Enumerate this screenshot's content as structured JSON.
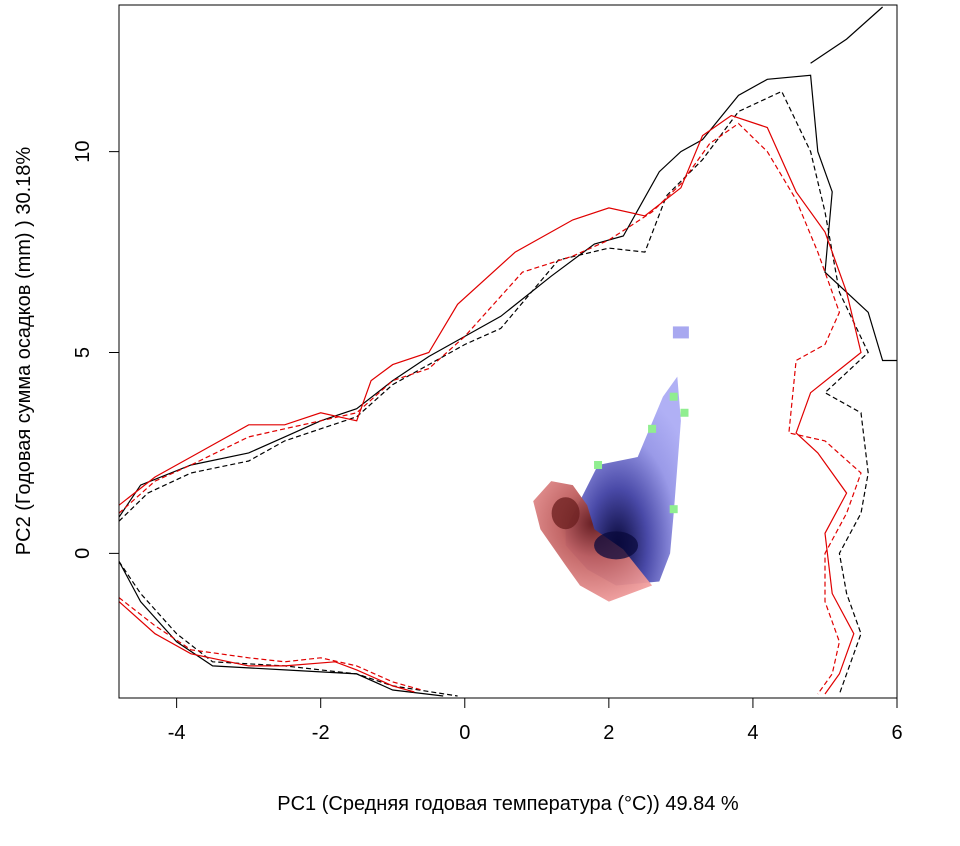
{
  "chart_data": {
    "type": "contour-density",
    "xlabel": "PC1 (Средняя годовая температура (°C)) 49.84 %",
    "ylabel": "PC2 (Годовая сумма осадков  (mm) ) 30.18%",
    "xlim": [
      -4.8,
      6.0
    ],
    "ylim": [
      -3.6,
      13.65
    ],
    "x_ticks": [
      -4,
      -2,
      0,
      2,
      4,
      6
    ],
    "x_tick_labels": [
      "-4",
      "-2",
      "0",
      "2",
      "4",
      "6"
    ],
    "y_ticks": [
      0,
      5,
      10
    ],
    "y_tick_labels": [
      "0",
      "5",
      "10"
    ],
    "grid": false,
    "legend": "none",
    "colors": {
      "species_a": "#e07070",
      "species_b": "#7070e0",
      "overlap": "#90ee90",
      "contour_a": "#e00000",
      "contour_b": "#000000"
    },
    "series": [
      {
        "style": "solid",
        "color": "#000000",
        "upper": [
          [
            -4.8,
            0.9
          ],
          [
            -4.5,
            1.7
          ],
          [
            -3.8,
            2.2
          ],
          [
            -3.0,
            2.5
          ],
          [
            -2.5,
            2.9
          ],
          [
            -2.0,
            3.3
          ],
          [
            -1.5,
            3.6
          ],
          [
            -1.0,
            4.3
          ],
          [
            -0.5,
            4.9
          ],
          [
            0,
            5.4
          ],
          [
            0.5,
            5.9
          ],
          [
            1.2,
            6.9
          ],
          [
            1.8,
            7.7
          ],
          [
            2.2,
            7.9
          ],
          [
            2.7,
            9.5
          ],
          [
            3.0,
            10.0
          ],
          [
            3.3,
            10.3
          ],
          [
            3.8,
            11.4
          ],
          [
            4.2,
            11.8
          ],
          [
            4.8,
            11.9
          ],
          [
            4.9,
            10.0
          ],
          [
            5.1,
            9.0
          ],
          [
            5.0,
            7.0
          ],
          [
            5.6,
            6.0
          ],
          [
            5.8,
            4.8
          ],
          [
            6.0,
            4.8
          ]
        ],
        "lower": [
          [
            -4.8,
            -0.2
          ],
          [
            -4.5,
            -1.2
          ],
          [
            -4.0,
            -2.2
          ],
          [
            -3.5,
            -2.8
          ],
          [
            -2.5,
            -2.9
          ],
          [
            -1.5,
            -3.0
          ],
          [
            -1.0,
            -3.4
          ],
          [
            -0.3,
            -3.55
          ]
        ],
        "corner": [
          [
            4.8,
            12.2
          ],
          [
            5.3,
            12.8
          ],
          [
            5.8,
            13.6
          ]
        ]
      },
      {
        "style": "dashed",
        "color": "#000000",
        "upper": [
          [
            -4.8,
            0.8
          ],
          [
            -4.4,
            1.5
          ],
          [
            -3.8,
            2.0
          ],
          [
            -3.0,
            2.3
          ],
          [
            -2.5,
            2.8
          ],
          [
            -2.0,
            3.1
          ],
          [
            -1.5,
            3.4
          ],
          [
            -1.0,
            4.2
          ],
          [
            -0.5,
            4.7
          ],
          [
            0,
            5.2
          ],
          [
            0.5,
            5.6
          ],
          [
            1.3,
            7.3
          ],
          [
            2.0,
            7.6
          ],
          [
            2.5,
            7.5
          ],
          [
            2.8,
            8.9
          ],
          [
            3.3,
            9.8
          ],
          [
            3.8,
            11.0
          ],
          [
            4.4,
            11.5
          ],
          [
            4.8,
            10.0
          ],
          [
            5.0,
            8.5
          ],
          [
            5.2,
            6.5
          ],
          [
            5.6,
            5.0
          ],
          [
            5.0,
            4.0
          ],
          [
            5.5,
            3.5
          ],
          [
            5.6,
            2.0
          ],
          [
            5.5,
            1.0
          ],
          [
            5.2,
            0
          ],
          [
            5.3,
            -1.0
          ],
          [
            5.5,
            -2.0
          ],
          [
            5.3,
            -3.0
          ],
          [
            5.2,
            -3.5
          ]
        ],
        "lower": [
          [
            -4.8,
            -0.2
          ],
          [
            -4.5,
            -1.0
          ],
          [
            -4.0,
            -2.0
          ],
          [
            -3.5,
            -2.7
          ],
          [
            -2.5,
            -2.8
          ],
          [
            -1.5,
            -3.0
          ],
          [
            -1.0,
            -3.3
          ],
          [
            -0.1,
            -3.55
          ]
        ]
      },
      {
        "style": "solid",
        "color": "#e00000",
        "upper": [
          [
            -4.8,
            1.2
          ],
          [
            -4.3,
            1.9
          ],
          [
            -3.8,
            2.4
          ],
          [
            -3.0,
            3.2
          ],
          [
            -2.5,
            3.2
          ],
          [
            -2.0,
            3.5
          ],
          [
            -1.5,
            3.3
          ],
          [
            -1.3,
            4.3
          ],
          [
            -1.0,
            4.7
          ],
          [
            -0.5,
            5.0
          ],
          [
            -0.1,
            6.2
          ],
          [
            0.7,
            7.5
          ],
          [
            1.5,
            8.3
          ],
          [
            2.0,
            8.6
          ],
          [
            2.5,
            8.4
          ],
          [
            3.0,
            9.1
          ],
          [
            3.3,
            10.4
          ],
          [
            3.7,
            10.9
          ],
          [
            4.2,
            10.6
          ],
          [
            4.6,
            9.0
          ],
          [
            5.0,
            8.0
          ],
          [
            5.3,
            6.5
          ],
          [
            5.5,
            5.0
          ],
          [
            4.8,
            4.0
          ],
          [
            4.6,
            3.0
          ],
          [
            4.9,
            2.5
          ],
          [
            5.3,
            1.5
          ],
          [
            5.0,
            0.5
          ],
          [
            5.1,
            -1.0
          ],
          [
            5.4,
            -2.0
          ],
          [
            5.2,
            -3.0
          ],
          [
            5.0,
            -3.5
          ]
        ],
        "lower": [
          [
            -4.8,
            -1.2
          ],
          [
            -4.3,
            -2.0
          ],
          [
            -3.8,
            -2.5
          ],
          [
            -3.0,
            -2.8
          ],
          [
            -2.5,
            -2.8
          ],
          [
            -1.8,
            -2.7
          ],
          [
            -1.5,
            -2.9
          ],
          [
            -1.0,
            -3.3
          ],
          [
            -0.7,
            -3.45
          ]
        ]
      },
      {
        "style": "dashed",
        "color": "#e00000",
        "upper": [
          [
            -4.8,
            1.0
          ],
          [
            -4.3,
            1.8
          ],
          [
            -3.8,
            2.2
          ],
          [
            -3.0,
            2.9
          ],
          [
            -2.5,
            3.1
          ],
          [
            -2.0,
            3.3
          ],
          [
            -1.5,
            3.5
          ],
          [
            -1.0,
            4.3
          ],
          [
            -0.5,
            4.6
          ],
          [
            0,
            5.4
          ],
          [
            0.8,
            7.0
          ],
          [
            1.5,
            7.4
          ],
          [
            2.0,
            7.8
          ],
          [
            2.6,
            8.5
          ],
          [
            3.0,
            9.2
          ],
          [
            3.4,
            10.2
          ],
          [
            3.8,
            10.7
          ],
          [
            4.2,
            10.0
          ],
          [
            4.6,
            8.8
          ],
          [
            4.9,
            7.5
          ],
          [
            5.2,
            6.0
          ],
          [
            5.0,
            5.2
          ],
          [
            4.6,
            4.8
          ],
          [
            4.5,
            3.0
          ],
          [
            5.0,
            2.8
          ],
          [
            5.5,
            2.0
          ],
          [
            5.3,
            1.0
          ],
          [
            5.0,
            0
          ],
          [
            5.0,
            -1.2
          ],
          [
            5.2,
            -2.2
          ],
          [
            5.1,
            -3.0
          ],
          [
            4.9,
            -3.5
          ]
        ],
        "lower": [
          [
            -4.8,
            -1.1
          ],
          [
            -4.3,
            -1.8
          ],
          [
            -3.8,
            -2.4
          ],
          [
            -3.0,
            -2.6
          ],
          [
            -2.5,
            -2.7
          ],
          [
            -2.0,
            -2.6
          ],
          [
            -1.5,
            -2.8
          ],
          [
            -1.0,
            -3.2
          ],
          [
            -0.6,
            -3.4
          ]
        ]
      }
    ],
    "regions": {
      "species_a_blob": [
        [
          0.95,
          1.3
        ],
        [
          1.05,
          0.6
        ],
        [
          1.4,
          -0.3
        ],
        [
          1.6,
          -0.8
        ],
        [
          2.0,
          -1.2
        ],
        [
          2.6,
          -0.8
        ],
        [
          2.2,
          0.1
        ],
        [
          1.8,
          0.6
        ],
        [
          1.7,
          1.2
        ],
        [
          1.5,
          1.7
        ],
        [
          1.2,
          1.8
        ]
      ],
      "species_b_blob": [
        [
          1.4,
          0.6
        ],
        [
          1.85,
          2.2
        ],
        [
          2.4,
          2.4
        ],
        [
          2.75,
          3.9
        ],
        [
          2.95,
          4.4
        ],
        [
          3.0,
          3.3
        ],
        [
          2.9,
          1.0
        ],
        [
          2.85,
          0
        ],
        [
          2.7,
          -0.7
        ],
        [
          2.1,
          -0.8
        ],
        [
          1.7,
          -0.4
        ],
        [
          1.4,
          0.2
        ]
      ],
      "overlap_points": [
        [
          1.85,
          2.2
        ],
        [
          2.6,
          3.1
        ],
        [
          2.9,
          3.9
        ],
        [
          3.05,
          3.5
        ],
        [
          2.9,
          1.1
        ]
      ],
      "b_islands": [
        [
          3.0,
          5.5
        ]
      ],
      "dark_centers": [
        {
          "x": 2.1,
          "y": 0.2,
          "color": "#0a0a3c"
        },
        {
          "x": 1.4,
          "y": 1.0,
          "color": "#6a1e1e"
        }
      ]
    }
  }
}
